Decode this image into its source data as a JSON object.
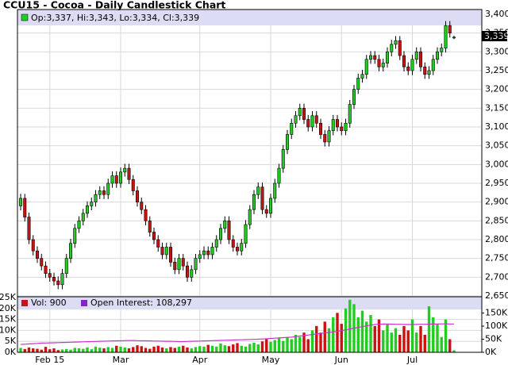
{
  "chart_data": {
    "type": "candlestick",
    "title": "CCU15 - Cocoa - Daily Candlestick Chart",
    "ohlc_label": "Op:3,337, Hi:3,343, Lo:3,334, Cl:3,339",
    "last_label": "3,339",
    "up_color": "#22cc22",
    "down_color": "#cc1111",
    "open": [
      2890,
      2910,
      2860,
      2800,
      2770,
      2750,
      2730,
      2710,
      2700,
      2690,
      2680,
      2710,
      2750,
      2790,
      2830,
      2850,
      2870,
      2890,
      2900,
      2920,
      2930,
      2920,
      2950,
      2970,
      2950,
      2980,
      2990,
      2960,
      2930,
      2900,
      2880,
      2850,
      2820,
      2800,
      2780,
      2760,
      2780,
      2740,
      2720,
      2750,
      2730,
      2700,
      2720,
      2750,
      2760,
      2770,
      2760,
      2780,
      2800,
      2830,
      2850,
      2800,
      2780,
      2770,
      2790,
      2840,
      2880,
      2920,
      2940,
      2880,
      2870,
      2910,
      2950,
      2990,
      3040,
      3080,
      3110,
      3130,
      3150,
      3120,
      3100,
      3130,
      3110,
      3080,
      3060,
      3090,
      3120,
      3100,
      3090,
      3110,
      3160,
      3200,
      3230,
      3240,
      3280,
      3290,
      3280,
      3260,
      3270,
      3300,
      3320,
      3330,
      3290,
      3260,
      3250,
      3280,
      3300,
      3260,
      3240,
      3250,
      3280,
      3300,
      3310,
      3370,
      3337
    ],
    "high": [
      2922,
      2922,
      2872,
      2812,
      2782,
      2762,
      2742,
      2722,
      2712,
      2702,
      2722,
      2762,
      2802,
      2842,
      2862,
      2882,
      2902,
      2912,
      2932,
      2942,
      2942,
      2962,
      2982,
      2982,
      2992,
      3002,
      3002,
      2972,
      2942,
      2912,
      2892,
      2862,
      2832,
      2812,
      2792,
      2792,
      2792,
      2752,
      2762,
      2762,
      2742,
      2732,
      2762,
      2772,
      2782,
      2782,
      2792,
      2812,
      2842,
      2862,
      2862,
      2812,
      2792,
      2802,
      2852,
      2892,
      2932,
      2952,
      2952,
      2892,
      2922,
      2962,
      3002,
      3052,
      3092,
      3122,
      3142,
      3162,
      3162,
      3132,
      3142,
      3142,
      3122,
      3092,
      3102,
      3132,
      3132,
      3112,
      3122,
      3172,
      3212,
      3242,
      3252,
      3292,
      3302,
      3302,
      3292,
      3282,
      3312,
      3332,
      3342,
      3342,
      3302,
      3272,
      3292,
      3312,
      3312,
      3272,
      3262,
      3292,
      3312,
      3322,
      3382,
      3382,
      3343
    ],
    "low": [
      2878,
      2848,
      2788,
      2758,
      2738,
      2718,
      2698,
      2688,
      2678,
      2668,
      2668,
      2698,
      2738,
      2778,
      2818,
      2838,
      2858,
      2878,
      2888,
      2908,
      2908,
      2908,
      2938,
      2938,
      2938,
      2968,
      2948,
      2918,
      2888,
      2868,
      2838,
      2808,
      2788,
      2768,
      2748,
      2748,
      2728,
      2708,
      2708,
      2718,
      2688,
      2688,
      2708,
      2738,
      2748,
      2748,
      2748,
      2768,
      2788,
      2818,
      2788,
      2768,
      2758,
      2758,
      2778,
      2828,
      2868,
      2908,
      2868,
      2858,
      2858,
      2898,
      2938,
      2978,
      3028,
      3068,
      3098,
      3118,
      3108,
      3088,
      3088,
      3098,
      3068,
      3048,
      3048,
      3078,
      3088,
      3078,
      3078,
      3098,
      3148,
      3188,
      3218,
      3228,
      3268,
      3268,
      3248,
      3248,
      3258,
      3288,
      3308,
      3278,
      3248,
      3238,
      3238,
      3268,
      3248,
      3228,
      3228,
      3238,
      3268,
      3288,
      3298,
      3338,
      3334
    ],
    "close": [
      2910,
      2860,
      2800,
      2770,
      2750,
      2730,
      2710,
      2700,
      2690,
      2680,
      2710,
      2750,
      2790,
      2830,
      2850,
      2870,
      2890,
      2900,
      2920,
      2930,
      2920,
      2950,
      2970,
      2950,
      2980,
      2990,
      2960,
      2930,
      2900,
      2880,
      2850,
      2820,
      2800,
      2780,
      2760,
      2780,
      2740,
      2720,
      2750,
      2730,
      2700,
      2720,
      2750,
      2760,
      2770,
      2760,
      2780,
      2800,
      2830,
      2850,
      2800,
      2780,
      2770,
      2790,
      2840,
      2880,
      2920,
      2940,
      2880,
      2870,
      2910,
      2950,
      2990,
      3040,
      3080,
      3110,
      3130,
      3150,
      3120,
      3100,
      3130,
      3110,
      3080,
      3060,
      3090,
      3120,
      3100,
      3090,
      3110,
      3160,
      3200,
      3230,
      3240,
      3280,
      3290,
      3280,
      3260,
      3270,
      3300,
      3320,
      3330,
      3290,
      3260,
      3250,
      3280,
      3300,
      3260,
      3240,
      3250,
      3280,
      3300,
      3310,
      3370,
      3350,
      3339
    ],
    "ylim": [
      2650,
      3400
    ],
    "yticks": [
      {
        "value": 2650,
        "label": "2,650"
      },
      {
        "value": 2700,
        "label": "2,700"
      },
      {
        "value": 2750,
        "label": "2,750"
      },
      {
        "value": 2800,
        "label": "2,800"
      },
      {
        "value": 2850,
        "label": "2,850"
      },
      {
        "value": 2900,
        "label": "2,900"
      },
      {
        "value": 2950,
        "label": "2,950"
      },
      {
        "value": 3000,
        "label": "3,000"
      },
      {
        "value": 3050,
        "label": "3,050"
      },
      {
        "value": 3100,
        "label": "3,100"
      },
      {
        "value": 3150,
        "label": "3,150"
      },
      {
        "value": 3200,
        "label": "3,200"
      },
      {
        "value": 3250,
        "label": "3,250"
      },
      {
        "value": 3300,
        "label": "3,300"
      },
      {
        "value": 3350,
        "label": "3,350"
      },
      {
        "value": 3400,
        "label": "3,400"
      }
    ],
    "xticks": [
      {
        "value": 7,
        "label": "Feb 15"
      },
      {
        "value": 24,
        "label": "Mar"
      },
      {
        "value": 43,
        "label": "Apr"
      },
      {
        "value": 60,
        "label": "May"
      },
      {
        "value": 77,
        "label": "Jun"
      },
      {
        "value": 94,
        "label": "Jul"
      }
    ],
    "volume_label": "Vol: 900",
    "open_interest_label": "Open Interest: 108,297",
    "open_interest_color": "#cc33cc",
    "volume": [
      2000,
      1500,
      2200,
      1800,
      1600,
      1200,
      2500,
      1400,
      1800,
      1000,
      1300,
      1500,
      1200,
      2000,
      1800,
      1600,
      2200,
      1400,
      2600,
      2100,
      1800,
      2400,
      2000,
      3000,
      2600,
      2200,
      1800,
      2400,
      3200,
      2800,
      2000,
      1600,
      2600,
      3000,
      2200,
      1800,
      2400,
      2000,
      2600,
      3000,
      2200,
      1800,
      2400,
      2800,
      2600,
      3400,
      3000,
      2600,
      4000,
      3200,
      2800,
      3600,
      4200,
      3000,
      2600,
      3800,
      4400,
      3600,
      5000,
      6000,
      4800,
      5600,
      6400,
      5200,
      7000,
      6000,
      8000,
      7000,
      9000,
      6000,
      10000,
      12000,
      9000,
      14000,
      11000,
      16000,
      18000,
      13000,
      20000,
      24000,
      22000,
      16000,
      19000,
      14000,
      17000,
      12000,
      15000,
      10000,
      13000,
      9000,
      11000,
      8000,
      12000,
      10000,
      15000,
      9000,
      12000,
      8000,
      21000,
      16000,
      13000,
      7000,
      15000,
      6000,
      900
    ],
    "open_interest": [
      30000,
      31000,
      32000,
      33000,
      34000,
      35000,
      35500,
      36000,
      36500,
      37000,
      37500,
      38000,
      38500,
      39000,
      39500,
      40000,
      40500,
      41000,
      41500,
      42000,
      42500,
      43000,
      43500,
      44000,
      44000,
      44500,
      45000,
      45000,
      44500,
      44000,
      44000,
      43500,
      43000,
      43000,
      42500,
      42000,
      42000,
      41500,
      41000,
      41000,
      41500,
      42000,
      42500,
      43000,
      43500,
      44000,
      44500,
      45000,
      45500,
      46000,
      46500,
      47000,
      47500,
      48000,
      48500,
      49000,
      49500,
      50000,
      51000,
      52000,
      53000,
      54000,
      55000,
      56000,
      57000,
      58000,
      60000,
      62000,
      64000,
      66000,
      68000,
      70000,
      72000,
      74000,
      76000,
      78000,
      80000,
      83000,
      86000,
      89000,
      92000,
      95000,
      98000,
      101000,
      104000,
      106000,
      107000,
      108000,
      108000,
      107500,
      107000,
      107000,
      106500,
      106000,
      106000,
      106500,
      107000,
      107000,
      107500,
      108000,
      108000,
      108500,
      108500,
      108300,
      108297
    ],
    "vol_ylim": [
      0,
      25000
    ],
    "vol_yticks": [
      {
        "value": 0,
        "label": "0K"
      },
      {
        "value": 5000,
        "label": "5K"
      },
      {
        "value": 10000,
        "label": "10K"
      },
      {
        "value": 15000,
        "label": "15K"
      },
      {
        "value": 20000,
        "label": "20K"
      },
      {
        "value": 25000,
        "label": "25K"
      }
    ],
    "y2lim": [
      0,
      200000
    ],
    "y2ticks": [
      {
        "value": 0,
        "label": "0K"
      },
      {
        "value": 50000,
        "label": "50K"
      },
      {
        "value": 100000,
        "label": "100K"
      },
      {
        "value": 150000,
        "label": "150K"
      }
    ],
    "grid": true
  }
}
